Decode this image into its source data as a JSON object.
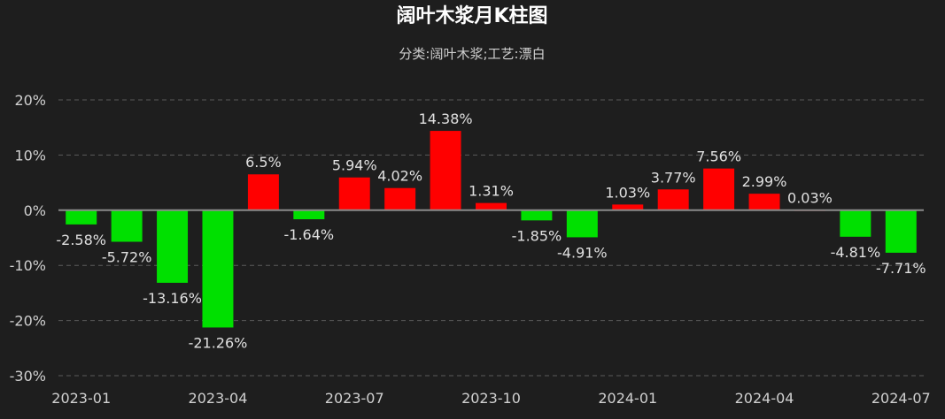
{
  "chart_data": {
    "type": "bar",
    "title": "阔叶木浆月K柱图",
    "subtitle": "分类:阔叶木浆;工艺:漂白",
    "categories": [
      "2023-01",
      "2023-02",
      "2023-03",
      "2023-04",
      "2023-05",
      "2023-06",
      "2023-07",
      "2023-08",
      "2023-09",
      "2023-10",
      "2023-11",
      "2023-12",
      "2024-01",
      "2024-02",
      "2024-03",
      "2024-04",
      "2024-05",
      "2024-06",
      "2024-07"
    ],
    "values": [
      -2.58,
      -5.72,
      -13.16,
      -21.26,
      6.5,
      -1.64,
      5.94,
      4.02,
      14.38,
      1.31,
      -1.85,
      -4.91,
      1.03,
      3.77,
      7.56,
      2.99,
      0.03,
      -4.81,
      -7.71
    ],
    "value_labels": [
      "-2.58%",
      "-5.72%",
      "-13.16%",
      "-21.26%",
      "6.5%",
      "-1.64%",
      "5.94%",
      "4.02%",
      "14.38%",
      "1.31%",
      "-1.85%",
      "-4.91%",
      "1.03%",
      "3.77%",
      "7.56%",
      "2.99%",
      "0.03%",
      "-4.81%",
      "-7.71%"
    ],
    "x_tick_labels": [
      "2023-01",
      "2023-04",
      "2023-07",
      "2023-10",
      "2024-01",
      "2024-04",
      "2024-07"
    ],
    "x_tick_indices": [
      0,
      3,
      6,
      9,
      12,
      15,
      18
    ],
    "y_ticks": [
      20,
      10,
      0,
      -10,
      -20,
      -30
    ],
    "y_tick_labels": [
      "20%",
      "10%",
      "0%",
      "-10%",
      "-20%",
      "-30%"
    ],
    "ylim": [
      -30,
      20
    ],
    "xlabel": "",
    "ylabel": "",
    "grid": true,
    "colors": {
      "positive": "#ff0000",
      "negative": "#00e000",
      "background": "#1e1e1e"
    }
  }
}
